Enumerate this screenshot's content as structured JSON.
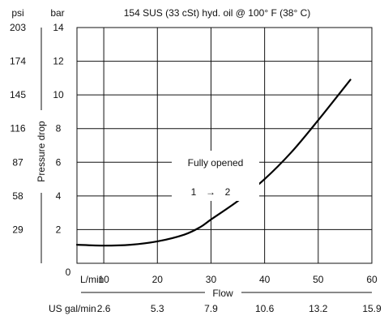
{
  "chart_data": {
    "type": "line",
    "title": "154 SUS (33 cSt) hyd. oil @ 100° F (38° C)",
    "ylabel": "Pressure drop",
    "xlabel": "Flow",
    "y_units": {
      "primary": "bar",
      "secondary": "psi"
    },
    "x_units": {
      "primary": "L/min",
      "secondary": "US gal/min"
    },
    "xlim": [
      5,
      60
    ],
    "ylim": [
      0,
      14
    ],
    "x_ticks": [
      10,
      20,
      30,
      40,
      50,
      60
    ],
    "y_ticks": [
      2,
      4,
      6,
      8,
      10,
      12,
      14
    ],
    "y_bottom_tick": "0",
    "psi_ticks": [
      "29",
      "58",
      "87",
      "116",
      "145",
      "174",
      "203"
    ],
    "gpm_ticks": [
      "2.6",
      "5.3",
      "7.9",
      "10.6",
      "13.2",
      "15.9"
    ],
    "grid": true,
    "annotations": {
      "state": "Fully opened",
      "from": "1",
      "arrow": "→",
      "to": "2"
    },
    "series": [
      {
        "x": [
          5,
          10,
          15,
          20,
          25,
          28,
          30,
          35,
          40,
          45,
          50,
          56
        ],
        "y": [
          1.1,
          1.05,
          1.1,
          1.3,
          1.7,
          2.15,
          2.6,
          3.7,
          5.0,
          6.6,
          8.5,
          10.9
        ]
      }
    ]
  }
}
